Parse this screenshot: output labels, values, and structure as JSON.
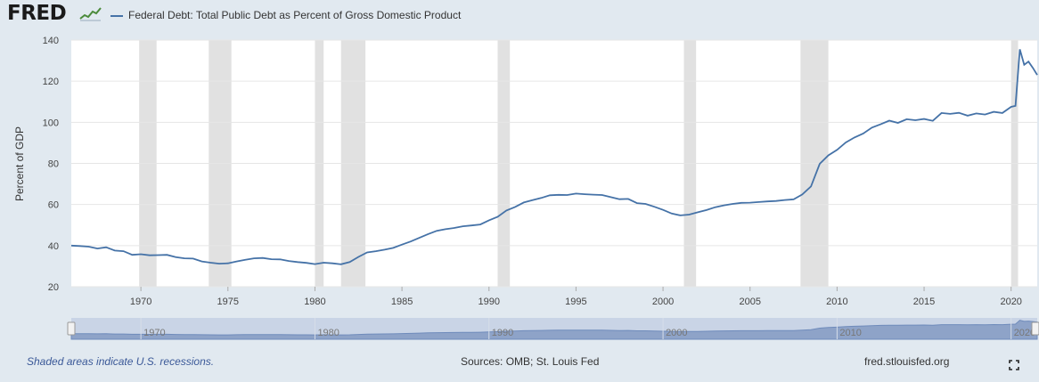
{
  "header": {
    "logo_text": "FRED",
    "logo_icon": "trend-line-icon"
  },
  "footer": {
    "note": "Shaded areas indicate U.S. recessions.",
    "sources": "Sources: OMB; St. Louis Fed",
    "site": "fred.stlouisfed.org",
    "fullscreen_icon": "fullscreen-icon"
  },
  "colors": {
    "line": "#4572a7",
    "recession": "#e1e1e1",
    "background": "#e1e9f0",
    "navigator_fill": "#8ea3c8"
  },
  "chart_data": {
    "type": "line",
    "title": "",
    "xlabel": "",
    "ylabel": "Percent of GDP",
    "ylim": [
      20,
      140
    ],
    "xlim": [
      1966,
      2021.5
    ],
    "yticks": [
      20,
      40,
      60,
      80,
      100,
      120,
      140
    ],
    "xticks": [
      1970,
      1975,
      1980,
      1985,
      1990,
      1995,
      2000,
      2005,
      2010,
      2015,
      2020
    ],
    "navigator_ticks": [
      1970,
      1980,
      1990,
      2000,
      2010,
      2020
    ],
    "grid": "horizontal",
    "legend": "top-left",
    "recessions": [
      [
        1969.9,
        1970.9
      ],
      [
        1973.9,
        1975.2
      ],
      [
        1980.0,
        1980.5
      ],
      [
        1981.5,
        1982.9
      ],
      [
        1990.5,
        1991.2
      ],
      [
        2001.2,
        2001.9
      ],
      [
        2007.9,
        2009.5
      ],
      [
        2020.0,
        2020.4
      ]
    ],
    "series": [
      {
        "name": "Federal Debt: Total Public Debt as Percent of Gross Domestic Product",
        "x": [
          1966,
          1966.5,
          1967,
          1967.5,
          1968,
          1968.5,
          1969,
          1969.5,
          1970,
          1970.5,
          1971,
          1971.5,
          1972,
          1972.5,
          1973,
          1973.5,
          1974,
          1974.5,
          1975,
          1975.5,
          1976,
          1976.5,
          1977,
          1977.5,
          1978,
          1978.5,
          1979,
          1979.5,
          1980,
          1980.5,
          1981,
          1981.5,
          1982,
          1982.5,
          1983,
          1983.5,
          1984,
          1984.5,
          1985,
          1985.5,
          1986,
          1986.5,
          1987,
          1987.5,
          1988,
          1988.5,
          1989,
          1989.5,
          1990,
          1990.5,
          1991,
          1991.5,
          1992,
          1992.5,
          1993,
          1993.5,
          1994,
          1994.5,
          1995,
          1995.5,
          1996,
          1996.5,
          1997,
          1997.5,
          1998,
          1998.5,
          1999,
          1999.5,
          2000,
          2000.5,
          2001,
          2001.5,
          2002,
          2002.5,
          2003,
          2003.5,
          2004,
          2004.5,
          2005,
          2005.5,
          2006,
          2006.5,
          2007,
          2007.5,
          2008,
          2008.5,
          2009,
          2009.5,
          2010,
          2010.5,
          2011,
          2011.5,
          2012,
          2012.5,
          2013,
          2013.5,
          2014,
          2014.5,
          2015,
          2015.5,
          2016,
          2016.5,
          2017,
          2017.5,
          2018,
          2018.5,
          2019,
          2019.5,
          2020,
          2020.25,
          2020.5,
          2020.75,
          2021,
          2021.25,
          2021.5
        ],
        "values": [
          40,
          39.8,
          39.5,
          38.6,
          39.2,
          37.6,
          37.3,
          35.5,
          35.8,
          35.3,
          35.4,
          35.5,
          34.4,
          33.8,
          33.7,
          32.3,
          31.7,
          31.2,
          31.4,
          32.3,
          33.1,
          33.8,
          34.0,
          33.4,
          33.3,
          32.5,
          32.0,
          31.6,
          31.0,
          31.7,
          31.4,
          30.9,
          32.0,
          34.5,
          36.7,
          37.3,
          38.0,
          38.9,
          40.5,
          42.0,
          43.8,
          45.6,
          47.2,
          48.0,
          48.6,
          49.4,
          49.8,
          50.3,
          52.3,
          54.0,
          57.1,
          58.8,
          61.0,
          62.1,
          63.2,
          64.5,
          64.7,
          64.6,
          65.3,
          65.0,
          64.8,
          64.6,
          63.6,
          62.6,
          62.7,
          60.7,
          60.3,
          58.9,
          57.4,
          55.6,
          54.7,
          55.1,
          56.2,
          57.3,
          58.7,
          59.6,
          60.3,
          60.8,
          60.9,
          61.2,
          61.5,
          61.7,
          62.2,
          62.5,
          64.9,
          68.8,
          79.8,
          83.9,
          86.6,
          90.2,
          92.6,
          94.5,
          97.4,
          99.0,
          100.8,
          99.7,
          101.5,
          101.0,
          101.6,
          100.7,
          104.5,
          104.1,
          104.6,
          103.2,
          104.3,
          103.8,
          105.1,
          104.5,
          107.5,
          108.0,
          135.5,
          128.0,
          129.5,
          126.5,
          123.0
        ]
      }
    ]
  }
}
